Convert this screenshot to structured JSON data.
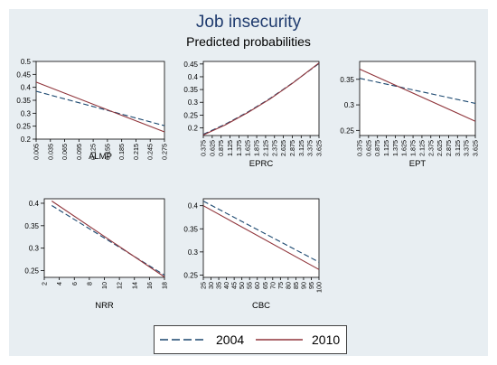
{
  "title": "Job insecurity",
  "subtitle": "Predicted probabilities",
  "colors": {
    "s2004": "#1a476f",
    "s2010": "#90353b",
    "panel_bg": "#e8eef2",
    "plot_bg": "#ffffff"
  },
  "legend": {
    "items": [
      {
        "label": "2004"
      },
      {
        "label": "2010"
      }
    ]
  },
  "chart_data": [
    {
      "type": "line",
      "xlabel": "ALMP",
      "xticks": [
        "0.005",
        "0.035",
        "0.065",
        "0.095",
        "0.125",
        "0.155",
        "0.185",
        "0.215",
        "0.245",
        "0.275"
      ],
      "xlim": [
        0.005,
        0.275
      ],
      "yticks": [
        "0.5",
        "0.45",
        "0.4",
        "0.35",
        "0.3",
        "0.25",
        "0.2"
      ],
      "ylim": [
        0.2,
        0.5
      ],
      "series": [
        {
          "name": "2004",
          "x": [
            0.005,
            0.275
          ],
          "y": [
            0.385,
            0.252
          ]
        },
        {
          "name": "2010",
          "x": [
            0.005,
            0.275
          ],
          "y": [
            0.42,
            0.228
          ]
        }
      ]
    },
    {
      "type": "line",
      "xlabel": "EPRC",
      "xticks": [
        "0.375",
        "0.625",
        "0.875",
        "1.125",
        "1.375",
        "1.625",
        "1.875",
        "2.125",
        "2.375",
        "2.625",
        "2.875",
        "3.125",
        "3.375",
        "3.625"
      ],
      "xlim": [
        0.375,
        3.625
      ],
      "yticks": [
        "0.45",
        "0.4",
        "0.35",
        "0.3",
        "0.25",
        "0.2"
      ],
      "ylim": [
        0.17,
        0.46
      ],
      "series": [
        {
          "name": "2004",
          "x": [
            0.375,
            1.0,
            1.625,
            2.25,
            2.875,
            3.625
          ],
          "y": [
            0.175,
            0.215,
            0.262,
            0.315,
            0.375,
            0.452
          ]
        },
        {
          "name": "2010",
          "x": [
            0.375,
            1.0,
            1.625,
            2.25,
            2.875,
            3.625
          ],
          "y": [
            0.172,
            0.212,
            0.26,
            0.313,
            0.374,
            0.454
          ]
        }
      ]
    },
    {
      "type": "line",
      "xlabel": "EPT",
      "xticks": [
        "0.375",
        "0.625",
        "0.875",
        "1.125",
        "1.375",
        "1.625",
        "1.875",
        "2.125",
        "2.375",
        "2.625",
        "2.875",
        "3.125",
        "3.375",
        "3.625"
      ],
      "xlim": [
        0.375,
        3.625
      ],
      "yticks": [
        "0.35",
        "0.3",
        "0.25"
      ],
      "ylim": [
        0.24,
        0.385
      ],
      "series": [
        {
          "name": "2004",
          "x": [
            0.375,
            3.625
          ],
          "y": [
            0.352,
            0.303
          ]
        },
        {
          "name": "2010",
          "x": [
            0.375,
            3.625
          ],
          "y": [
            0.37,
            0.268
          ]
        }
      ]
    },
    {
      "type": "line",
      "xlabel": "NRR",
      "xticks": [
        "2",
        "4",
        "6",
        "8",
        "10",
        "12",
        "14",
        "16",
        "18"
      ],
      "xlim": [
        2,
        18
      ],
      "yticks": [
        "0.4",
        "0.35",
        "0.3",
        "0.25"
      ],
      "ylim": [
        0.235,
        0.41
      ],
      "series": [
        {
          "name": "2004",
          "x": [
            3,
            18
          ],
          "y": [
            0.395,
            0.24
          ]
        },
        {
          "name": "2010",
          "x": [
            3,
            18
          ],
          "y": [
            0.405,
            0.236
          ]
        }
      ]
    },
    {
      "type": "line",
      "xlabel": "CBC",
      "xticks": [
        "25",
        "30",
        "35",
        "40",
        "45",
        "50",
        "55",
        "60",
        "65",
        "70",
        "75",
        "80",
        "85",
        "90",
        "95",
        "100"
      ],
      "xlim": [
        25,
        100
      ],
      "yticks": [
        "0.4",
        "0.35",
        "0.3",
        "0.25"
      ],
      "ylim": [
        0.245,
        0.415
      ],
      "series": [
        {
          "name": "2004",
          "x": [
            25,
            100
          ],
          "y": [
            0.41,
            0.278
          ]
        },
        {
          "name": "2010",
          "x": [
            25,
            100
          ],
          "y": [
            0.4,
            0.262
          ]
        }
      ]
    }
  ]
}
